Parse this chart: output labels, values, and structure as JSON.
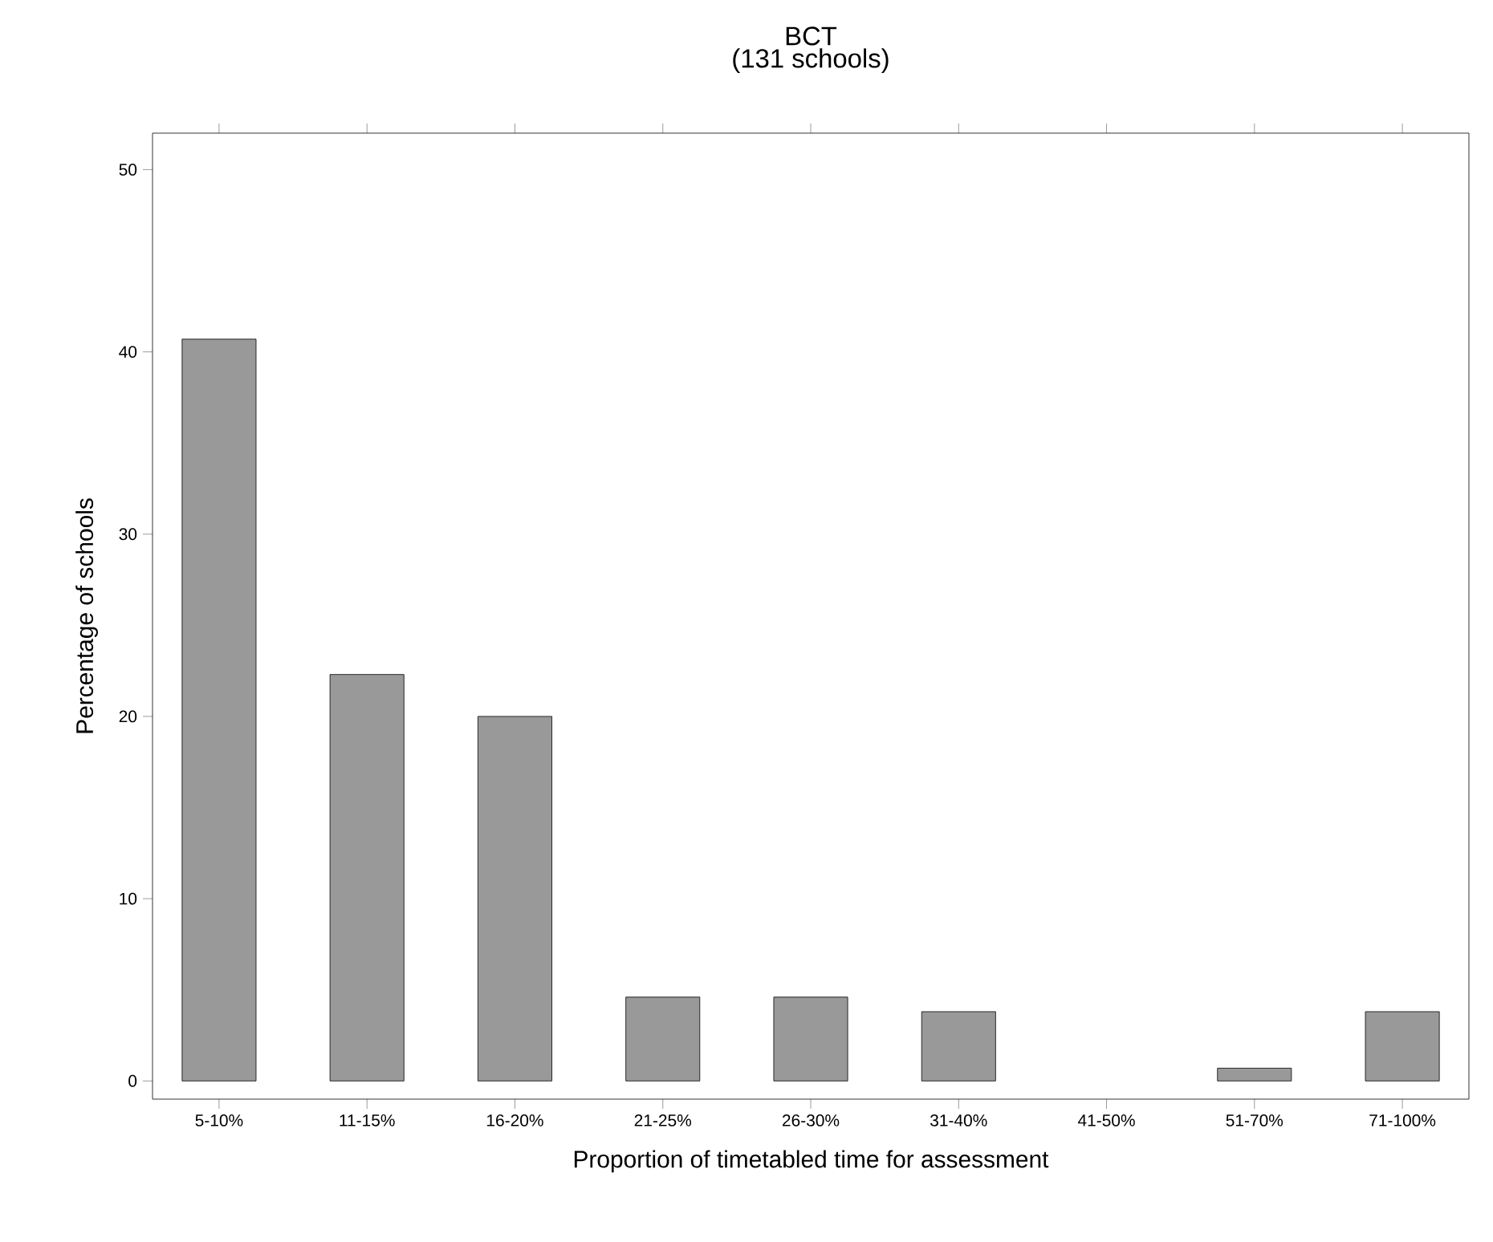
{
  "chart_data": {
    "type": "bar",
    "title": "BCT",
    "subtitle": "(131 schools)",
    "xlabel": "Proportion of timetabled time for assessment",
    "ylabel": "Percentage of schools",
    "categories": [
      "5-10%",
      "11-15%",
      "16-20%",
      "21-25%",
      "26-30%",
      "31-40%",
      "41-50%",
      "51-70%",
      "71-100%"
    ],
    "values": [
      40.7,
      22.3,
      20.0,
      4.6,
      4.6,
      3.8,
      0,
      0.7,
      3.8
    ],
    "color": "#999999",
    "ylim": [
      -1,
      52
    ],
    "yticks": [
      0,
      10,
      20,
      30,
      40,
      50
    ],
    "grid": false
  }
}
